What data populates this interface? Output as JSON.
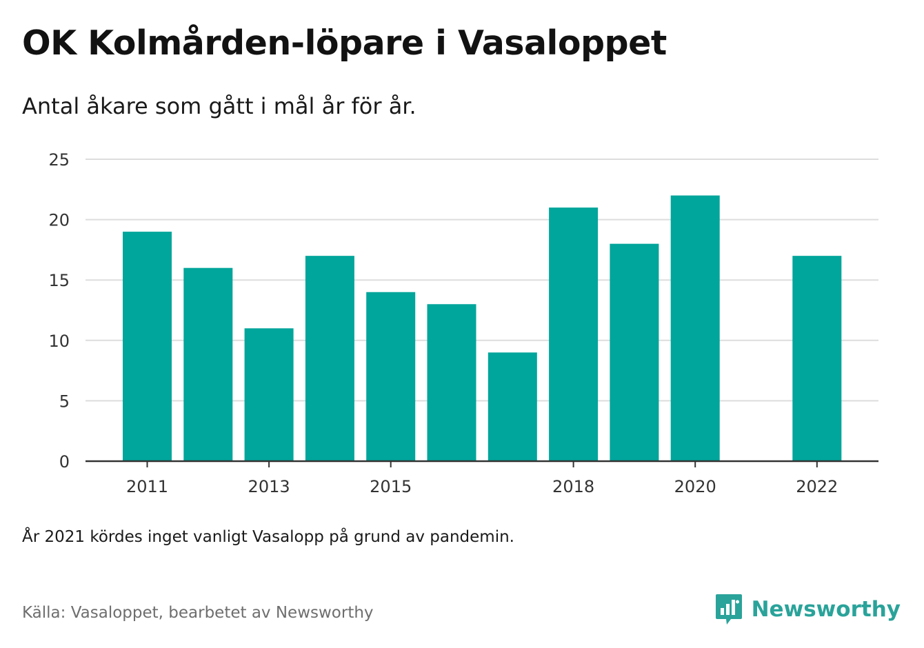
{
  "header": {
    "title": "OK Kolmården-löpare i Vasaloppet",
    "subtitle": "Antal åkare som gått i mål år för år."
  },
  "footer": {
    "note": "År 2021 kördes inget vanligt Vasalopp på grund av pandemin.",
    "source": "Källa: Vasaloppet, bearbetet av Newsworthy",
    "brand": "Newsworthy",
    "brand_icon": "bar-chart-speech-bubble-icon"
  },
  "colors": {
    "bar": "#00a59b",
    "grid": "#dddddd",
    "axis": "#333333",
    "brand": "#2aa39a"
  },
  "chart_data": {
    "type": "bar",
    "title": "OK Kolmården-löpare i Vasaloppet",
    "subtitle": "Antal åkare som gått i mål år för år.",
    "xlabel": "",
    "ylabel": "",
    "categories": [
      2011,
      2012,
      2013,
      2014,
      2015,
      2016,
      2017,
      2018,
      2019,
      2020,
      2021,
      2022
    ],
    "values": [
      19,
      16,
      11,
      17,
      14,
      13,
      9,
      21,
      18,
      22,
      null,
      17
    ],
    "x_tick_labels": [
      "2011",
      "2013",
      "2015",
      "2018",
      "2020",
      "2022"
    ],
    "y_ticks": [
      0,
      5,
      10,
      15,
      20,
      25
    ],
    "ylim": [
      0,
      25
    ],
    "grid": "horizontal",
    "legend": "none"
  }
}
